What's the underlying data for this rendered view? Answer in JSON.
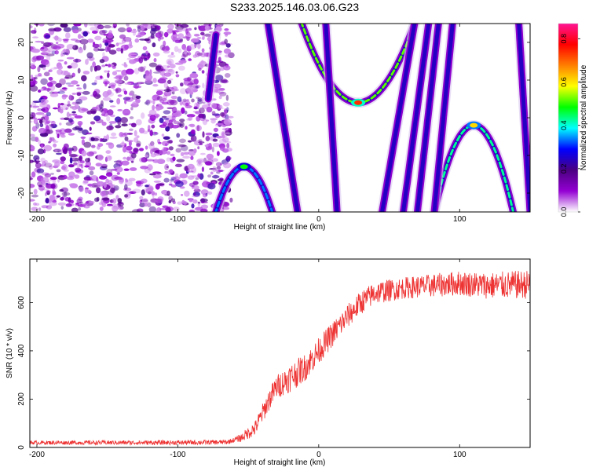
{
  "figure": {
    "title": "S233.2025.146.03.06.G23"
  },
  "chart_data": [
    {
      "type": "heatmap",
      "name": "spectrogram",
      "xlabel": "Height of straight line (km)",
      "ylabel": "Frequency (Hz)",
      "xlim": [
        -205,
        150
      ],
      "ylim": [
        -25,
        25
      ],
      "x_ticks": [
        -200,
        -100,
        0,
        100
      ],
      "y_ticks": [
        -20,
        -10,
        0,
        10,
        20
      ],
      "colorbar": {
        "label": "Normalized spectral amplitude",
        "range": [
          0,
          0.87
        ],
        "ticks": [
          0.0,
          0.2,
          0.4,
          0.6,
          0.8
        ],
        "colors": [
          "#ffffff",
          "#9400d3",
          "#4b0082",
          "#0000ff",
          "#00ffff",
          "#00ff00",
          "#ffff00",
          "#ff7f00",
          "#ff0000",
          "#ff1493"
        ]
      },
      "noise_region_xmax": -62,
      "traces": [
        {
          "shape": "cap",
          "vertex_x": -53,
          "vertex_y": -13,
          "half_width_at_bottom": 20,
          "peak_amp": 0.55
        },
        {
          "shape": "line",
          "x_top": -72,
          "x_bottom": -88,
          "y_range": [
            5,
            22
          ],
          "peak_amp": 0.3
        },
        {
          "shape": "cup",
          "vertex_x": 28,
          "vertex_y": 4,
          "half_width_at_top": 40,
          "peak_amp": 0.85
        },
        {
          "shape": "cap",
          "vertex_x": 110,
          "vertex_y": -2,
          "half_width_at_bottom": 28,
          "peak_amp": 0.7
        },
        {
          "shape": "line",
          "x_top": -36,
          "x_bottom": -15,
          "peak_amp": 0.25
        },
        {
          "shape": "line",
          "x_top": 5,
          "x_bottom": 13,
          "peak_amp": 0.2
        },
        {
          "shape": "line",
          "x_top": 68,
          "x_bottom": 45,
          "peak_amp": 0.2
        },
        {
          "shape": "line",
          "x_top": 78,
          "x_bottom": 60,
          "peak_amp": 0.2
        },
        {
          "shape": "line",
          "x_top": 85,
          "x_bottom": 70,
          "peak_amp": 0.2
        },
        {
          "shape": "line",
          "x_top": 95,
          "x_bottom": 82,
          "peak_amp": 0.2
        },
        {
          "shape": "line",
          "x_top": 142,
          "x_bottom": 150,
          "peak_amp": 0.2
        }
      ]
    },
    {
      "type": "line",
      "name": "snr",
      "xlabel": "Height of straight line (km)",
      "ylabel": "SNR (10 * v/v)",
      "xlim": [
        -205,
        150
      ],
      "ylim": [
        0,
        780
      ],
      "x_ticks": [
        -200,
        -100,
        0,
        100
      ],
      "y_ticks": [
        0,
        200,
        400,
        600
      ],
      "color": "#ee3333",
      "trend": {
        "x": [
          -205,
          -100,
          -65,
          -55,
          -45,
          -40,
          -35,
          -30,
          -20,
          -10,
          0,
          10,
          20,
          30,
          40,
          60,
          80,
          100,
          120,
          150
        ],
        "y": [
          20,
          20,
          22,
          40,
          80,
          140,
          200,
          250,
          290,
          330,
          400,
          470,
          540,
          600,
          640,
          660,
          670,
          680,
          670,
          675
        ]
      },
      "noise_amp": {
        "x": [
          -205,
          -60,
          -40,
          -20,
          20,
          60,
          150
        ],
        "y": [
          8,
          10,
          40,
          60,
          50,
          45,
          60
        ]
      }
    }
  ]
}
